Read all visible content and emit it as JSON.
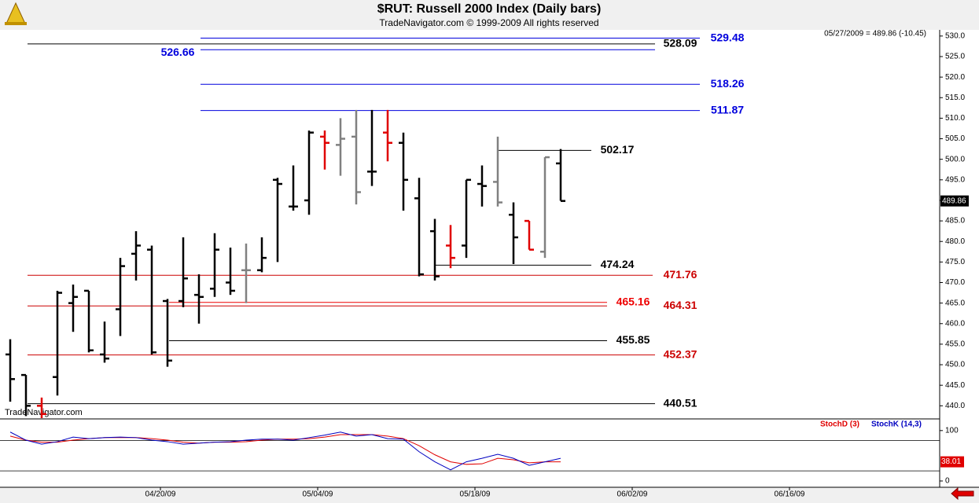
{
  "chart_data": [
    {
      "type": "ohlc",
      "title": "$RUT:  Russell 2000 Index  (Daily bars)",
      "subtitle": "TradeNavigator.com © 1999-2009 All rights reserved",
      "info": "05/27/2009 = 489.86 (-10.45)",
      "watermark": "TradeNavigator.com",
      "x": [
        "04/06/09",
        "04/07/09",
        "04/08/09",
        "04/09/09",
        "04/13/09",
        "04/14/09",
        "04/15/09",
        "04/16/09",
        "04/17/09",
        "04/20/09",
        "04/21/09",
        "04/22/09",
        "04/23/09",
        "04/24/09",
        "04/27/09",
        "04/28/09",
        "04/29/09",
        "04/30/09",
        "05/01/09",
        "05/04/09",
        "05/05/09",
        "05/06/09",
        "05/07/09",
        "05/08/09",
        "05/11/09",
        "05/12/09",
        "05/13/09",
        "05/14/09",
        "05/15/09",
        "05/18/09",
        "05/19/09",
        "05/20/09",
        "05/21/09",
        "05/22/09",
        "05/26/09",
        "05/27/09"
      ],
      "xticks": [
        "04/20/09",
        "05/04/09",
        "05/18/09",
        "06/02/09",
        "06/16/09"
      ],
      "series": [
        {
          "open": [
            452.5,
            447.5,
            440,
            447,
            465,
            468,
            452.5,
            463.5,
            477,
            478,
            465.5,
            465.5,
            467,
            468.5,
            470,
            473,
            473,
            495,
            488.5,
            490,
            505.5,
            503.5,
            505.5,
            497,
            506.5,
            504,
            490.5,
            482.5,
            479,
            479,
            494,
            494.5,
            486.5,
            485,
            477.5,
            499
          ],
          "high": [
            456.2,
            447.5,
            442,
            468,
            469.5,
            468,
            460.5,
            476,
            482.5,
            479,
            466,
            481,
            472,
            482,
            478.5,
            479.5,
            481,
            495.5,
            498.5,
            507,
            507,
            510,
            512,
            512,
            512,
            506.5,
            495.5,
            485.5,
            484,
            495,
            498.5,
            505.5,
            489.5,
            485,
            500.5,
            502.5
          ],
          "low": [
            441,
            437.5,
            437,
            442.5,
            458,
            453,
            450.5,
            457,
            470.5,
            452.5,
            449.5,
            464,
            460,
            466.5,
            467,
            465,
            472.5,
            475,
            487.5,
            486.5,
            497.5,
            496,
            489,
            493.5,
            499.5,
            487.5,
            471.5,
            470.5,
            473.5,
            476,
            488.5,
            488.5,
            474.5,
            478,
            476,
            489.9
          ],
          "close": [
            446.5,
            440,
            438,
            467.5,
            466.5,
            453.5,
            451.5,
            474,
            479,
            453,
            451,
            471,
            466.5,
            478,
            468,
            473,
            476,
            494,
            488.5,
            506.5,
            504,
            505,
            492,
            497,
            504,
            495,
            472,
            471.5,
            476,
            495,
            493.5,
            489.5,
            481,
            478,
            500.5,
            489.86
          ],
          "colors": [
            "#000000",
            "#000000",
            "#e00000",
            "#000000",
            "#000000",
            "#000000",
            "#000000",
            "#000000",
            "#000000",
            "#000000",
            "#000000",
            "#000000",
            "#000000",
            "#000000",
            "#000000",
            "#808080",
            "#000000",
            "#000000",
            "#000000",
            "#000000",
            "#e00000",
            "#808080",
            "#808080",
            "#000000",
            "#e00000",
            "#000000",
            "#000000",
            "#000000",
            "#e00000",
            "#000000",
            "#000000",
            "#808080",
            "#000000",
            "#e00000",
            "#808080",
            "#000000"
          ]
        }
      ],
      "ylim": [
        437,
        531.5
      ],
      "yticks": [
        {
          "value": 440,
          "label": "440.0"
        },
        {
          "value": 445,
          "label": "445.0"
        },
        {
          "value": 450,
          "label": "450.0"
        },
        {
          "value": 455,
          "label": "455.0"
        },
        {
          "value": 460,
          "label": "460.0"
        },
        {
          "value": 465,
          "label": "465.0"
        },
        {
          "value": 470,
          "label": "470.0"
        },
        {
          "value": 475,
          "label": "475.0"
        },
        {
          "value": 480,
          "label": "480.0"
        },
        {
          "value": 485,
          "label": "485.0"
        },
        {
          "value": 490,
          "label": "490.0"
        },
        {
          "value": 495,
          "label": "495.0"
        },
        {
          "value": 500,
          "label": "500.0"
        },
        {
          "value": 505,
          "label": "505.0"
        },
        {
          "value": 510,
          "label": "510.0"
        },
        {
          "value": 515,
          "label": "515.0"
        },
        {
          "value": 520,
          "label": "520.0"
        },
        {
          "value": 525,
          "label": "525.0"
        },
        {
          "value": 530,
          "label": "530.0"
        }
      ],
      "levels": [
        {
          "value": 529.48,
          "color": "#0000dd"
        },
        {
          "value": 528.09,
          "color": "#000000"
        },
        {
          "value": 526.66,
          "color": "#0000dd"
        },
        {
          "value": 518.26,
          "color": "#0000dd"
        },
        {
          "value": 511.87,
          "color": "#0000dd"
        },
        {
          "value": 502.17,
          "color": "#000000"
        },
        {
          "value": 474.24,
          "color": "#000000"
        },
        {
          "value": 471.76,
          "color": "#cc0000"
        },
        {
          "value": 465.16,
          "color": "#ee0000"
        },
        {
          "value": 464.31,
          "color": "#cc0000"
        },
        {
          "value": 455.85,
          "color": "#000000"
        },
        {
          "value": 452.37,
          "color": "#cc0000"
        },
        {
          "value": 440.51,
          "color": "#000000"
        }
      ]
    },
    {
      "type": "line",
      "series": [
        {
          "name": "StochD (3)",
          "color": "#e00000",
          "values": [
            89,
            81,
            77,
            77,
            81,
            84,
            86,
            86,
            86,
            84,
            81,
            77,
            75,
            77,
            77,
            78,
            81,
            83,
            83,
            84,
            87,
            92,
            92,
            92,
            89,
            84,
            70,
            52,
            38,
            33,
            34,
            45,
            42,
            36,
            38,
            38.01
          ]
        },
        {
          "name": "StochK (14,3)",
          "color": "#0000c0",
          "values": [
            97,
            81,
            73,
            78,
            87,
            84,
            86,
            87,
            86,
            81,
            78,
            73,
            75,
            77,
            78,
            81,
            83,
            83,
            81,
            86,
            91,
            97,
            89,
            92,
            84,
            83,
            58,
            38,
            22,
            38,
            45,
            53,
            45,
            31,
            38,
            45
          ]
        }
      ],
      "ylim": [
        -12.5,
        120
      ],
      "yticks": [
        0,
        100
      ],
      "hlines": [
        80,
        20
      ]
    }
  ]
}
